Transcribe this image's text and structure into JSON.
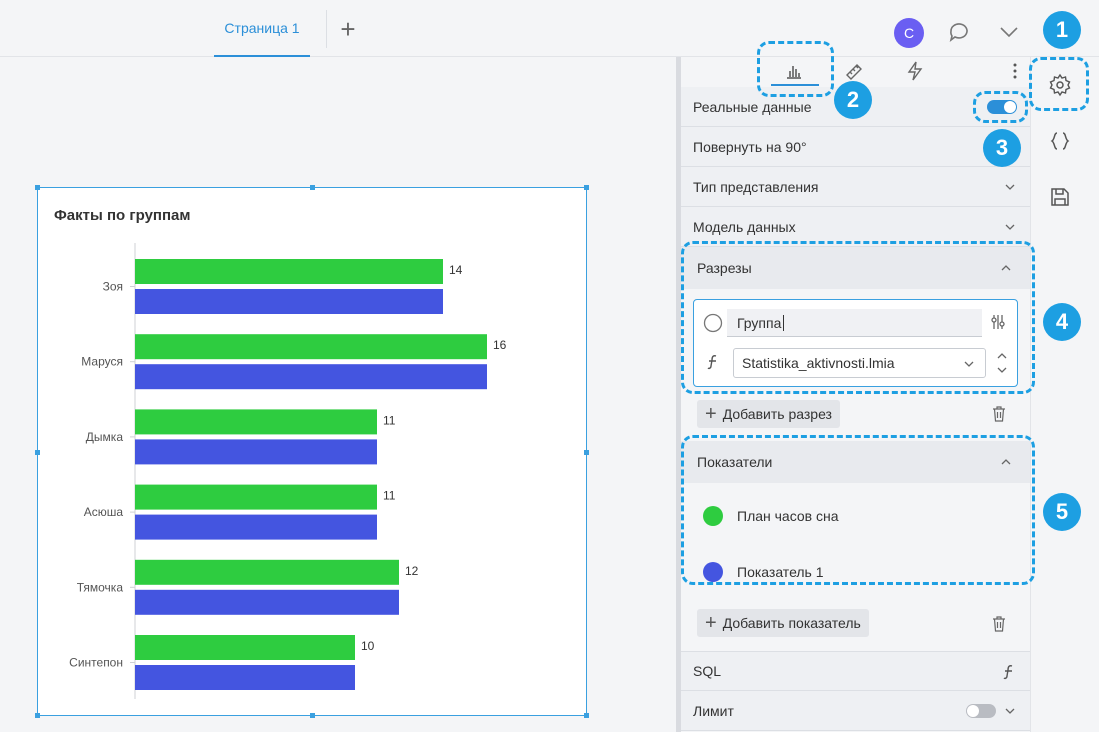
{
  "topbar": {
    "tab_label": "Страница 1",
    "add_tab": "+",
    "avatar_letter": "C"
  },
  "badges": [
    "1",
    "2",
    "3",
    "4",
    "5"
  ],
  "panel": {
    "rows": {
      "real_data": "Реальные данные",
      "rotate": "Повернуть на 90°",
      "view_type": "Тип представления",
      "data_model": "Модель данных",
      "sql": "SQL",
      "limit": "Лимит"
    },
    "toggles": {
      "real_data": true,
      "limit": false
    },
    "dimensions": {
      "title": "Разрезы",
      "name_value": "Группа",
      "field_value": "Statistika_aktivnosti.lmia",
      "add_button": "Добавить разрез"
    },
    "metrics": {
      "title": "Показатели",
      "items": [
        {
          "label": "План часов сна",
          "color": "#2ecc40"
        },
        {
          "label": "Показатель 1",
          "color": "#4455e0"
        }
      ],
      "add_button": "Добавить показатель"
    }
  },
  "chart_data": {
    "type": "bar",
    "orientation": "horizontal",
    "title": "Факты по группам",
    "categories": [
      "Зоя",
      "Маруся",
      "Дымка",
      "Асюша",
      "Тямочка",
      "Синтепон"
    ],
    "series": [
      {
        "values": [
          14,
          16,
          11,
          11,
          12,
          10
        ],
        "color": "#2ecc40"
      },
      {
        "values": [
          14,
          16,
          11,
          11,
          12,
          10
        ],
        "color": "#4455e0"
      }
    ],
    "data_labels": "series_0",
    "xlim": [
      0,
      18
    ],
    "grid": false
  }
}
